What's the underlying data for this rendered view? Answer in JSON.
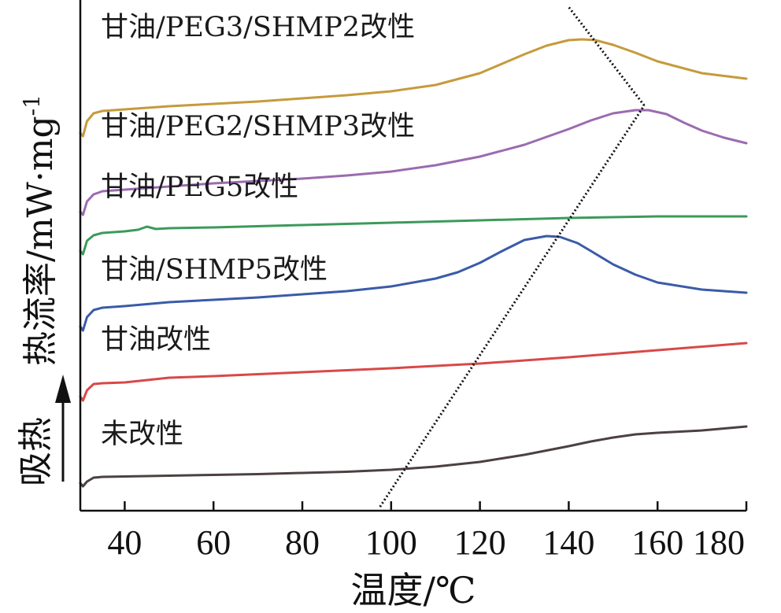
{
  "chart_data": {
    "type": "line",
    "title": "",
    "xlabel": "温度/℃",
    "ylabel": "热流率/mW·mg",
    "ylabel_sup": "-1",
    "endo_label": "吸热",
    "xlim": [
      30,
      180
    ],
    "xticks": [
      40,
      60,
      80,
      100,
      120,
      140,
      160,
      180
    ],
    "y_ticks_shown": false,
    "grid": false,
    "legend": "none",
    "series": [
      {
        "name": "未改性",
        "color": "#4d4040",
        "x": [
          30,
          30.6,
          31.5,
          33,
          35,
          40,
          50,
          60,
          70,
          80,
          90,
          100,
          110,
          120,
          130,
          140,
          145,
          150,
          155,
          160,
          170,
          180
        ],
        "y": [
          0.5,
          0.1,
          0.7,
          1.2,
          1.3,
          1.35,
          1.45,
          1.55,
          1.65,
          1.8,
          1.95,
          2.2,
          2.6,
          3.2,
          4.1,
          5.2,
          5.8,
          6.3,
          6.7,
          6.9,
          7.2,
          7.7
        ]
      },
      {
        "name": "甘油改性",
        "color": "#d94848",
        "x": [
          30,
          30.6,
          31.5,
          33,
          35,
          40,
          50,
          60,
          80,
          100,
          120,
          140,
          160,
          180
        ],
        "y": [
          11.5,
          11.0,
          12.3,
          13.1,
          13.2,
          13.3,
          13.9,
          14.1,
          14.6,
          15.1,
          15.7,
          16.5,
          17.4,
          18.3
        ]
      },
      {
        "name": "甘油/SHMP5改性",
        "color": "#3a5ba8",
        "x": [
          30,
          30.6,
          31.5,
          33,
          35,
          40,
          50,
          60,
          70,
          80,
          90,
          100,
          110,
          115,
          120,
          125,
          130,
          135,
          138,
          142,
          145,
          150,
          155,
          160,
          170,
          180
        ],
        "y": [
          20.4,
          19.9,
          21.6,
          22.5,
          22.8,
          23.0,
          23.5,
          23.8,
          24.1,
          24.5,
          24.9,
          25.5,
          26.5,
          27.3,
          28.5,
          30.0,
          31.4,
          31.9,
          31.8,
          31.0,
          30.0,
          28.3,
          27.0,
          26.0,
          25.1,
          24.7
        ]
      },
      {
        "name": "甘油/PEG5改性",
        "color": "#3c9a5a",
        "x": [
          30,
          30.6,
          31.5,
          33,
          35,
          40,
          43,
          45,
          47,
          50,
          60,
          80,
          100,
          120,
          140,
          160,
          180
        ],
        "y": [
          30.0,
          29.6,
          31.3,
          32.0,
          32.3,
          32.5,
          32.7,
          33.1,
          32.8,
          32.9,
          33.0,
          33.3,
          33.6,
          33.9,
          34.2,
          34.4,
          34.4
        ]
      },
      {
        "name": "甘油/PEG2/SHMP3改性",
        "color": "#9b6bb0",
        "x": [
          30,
          30.6,
          31.5,
          33,
          35,
          40,
          50,
          60,
          70,
          80,
          90,
          100,
          110,
          120,
          130,
          140,
          145,
          150,
          155,
          158,
          162,
          166,
          170,
          175,
          180
        ],
        "y": [
          35.0,
          34.6,
          36.3,
          37.2,
          37.6,
          37.8,
          38.2,
          38.6,
          38.9,
          39.2,
          39.6,
          40.1,
          40.9,
          42.0,
          43.5,
          45.5,
          46.6,
          47.5,
          47.9,
          47.9,
          47.4,
          46.3,
          45.3,
          44.4,
          43.7
        ]
      },
      {
        "name": "甘油/PEG3/SHMP2改性",
        "color": "#c69a3c",
        "x": [
          30,
          30.6,
          31.5,
          33,
          35,
          40,
          50,
          60,
          70,
          80,
          90,
          100,
          110,
          120,
          125,
          130,
          135,
          140,
          143,
          146,
          150,
          155,
          160,
          170,
          180
        ],
        "y": [
          45.0,
          44.6,
          46.5,
          47.5,
          47.8,
          48.0,
          48.4,
          48.7,
          49.0,
          49.4,
          49.8,
          50.3,
          51.1,
          52.6,
          53.8,
          55.0,
          56.1,
          56.8,
          56.9,
          56.8,
          56.2,
          55.2,
          54.1,
          52.6,
          51.9
        ]
      }
    ],
    "trend_line": {
      "style": "dotted",
      "color": "#111111",
      "x": [
        97.5,
        157
      ],
      "y": [
        -2.5,
        48.5
      ],
      "x2": [
        157,
        140
      ],
      "y2": [
        48.5,
        61
      ]
    }
  }
}
